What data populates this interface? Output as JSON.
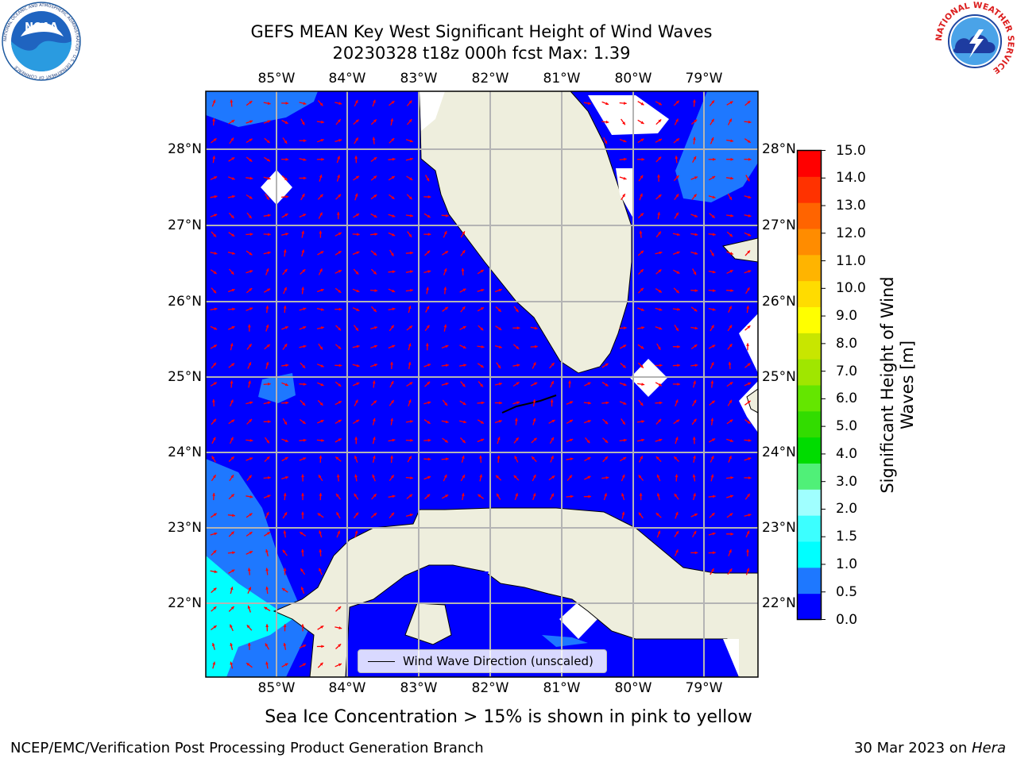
{
  "title": {
    "line1": "GEFS MEAN Key West Significant Height of Wind Waves",
    "line2": "20230328 t18z 000h fcst   Max: 1.39"
  },
  "map": {
    "lon_ticks": [
      "85°W",
      "84°W",
      "83°W",
      "82°W",
      "81°W",
      "80°W",
      "79°W"
    ],
    "lat_ticks": [
      "28°N",
      "27°N",
      "26°N",
      "25°N",
      "24°N",
      "23°N",
      "22°N"
    ],
    "colors": {
      "ocean_0_05": "#0000ff",
      "ocean_05_10": "#1e78ff",
      "ocean_10_15": "#00ffff",
      "land": "#eeeedd",
      "arrows": "#ff0000",
      "grid": "#b4b4b4"
    }
  },
  "colorbar": {
    "ticks": [
      "15.0",
      "14.0",
      "13.0",
      "12.0",
      "11.0",
      "10.0",
      "9.0",
      "8.0",
      "7.0",
      "6.0",
      "5.0",
      "4.0",
      "3.0",
      "2.0",
      "1.5",
      "1.0",
      "0.5",
      "0.0"
    ],
    "label": "Significant Height of Wind Waves [m]",
    "label_line1": "Significant Height of Wind",
    "label_line2": "Waves [m]",
    "colors": [
      "#0000ff",
      "#1e78ff",
      "#00ffff",
      "#3cffff",
      "#a0ffff",
      "#50f078",
      "#00dc00",
      "#32dc00",
      "#64e600",
      "#a0e600",
      "#c8e600",
      "#ffff00",
      "#ffdc00",
      "#ffb400",
      "#ff8c00",
      "#ff6400",
      "#ff3200",
      "#ff0000"
    ]
  },
  "legend": {
    "label": "Wind Wave Direction (unscaled)"
  },
  "note": "Sea Ice Concentration > 15% is shown in pink to yellow",
  "footer": {
    "left": "NCEP/EMC/Verification Post Processing Product Generation Branch",
    "right_date": "30 Mar 2023 on ",
    "right_host": "Hera"
  },
  "logos": {
    "left_text": "NOAA",
    "left_ring": "NATIONAL OCEANIC AND ATMOSPHERIC ADMINISTRATION · U.S. DEPARTMENT OF COMMERCE",
    "right_ring": "NATIONAL WEATHER SERVICE"
  }
}
